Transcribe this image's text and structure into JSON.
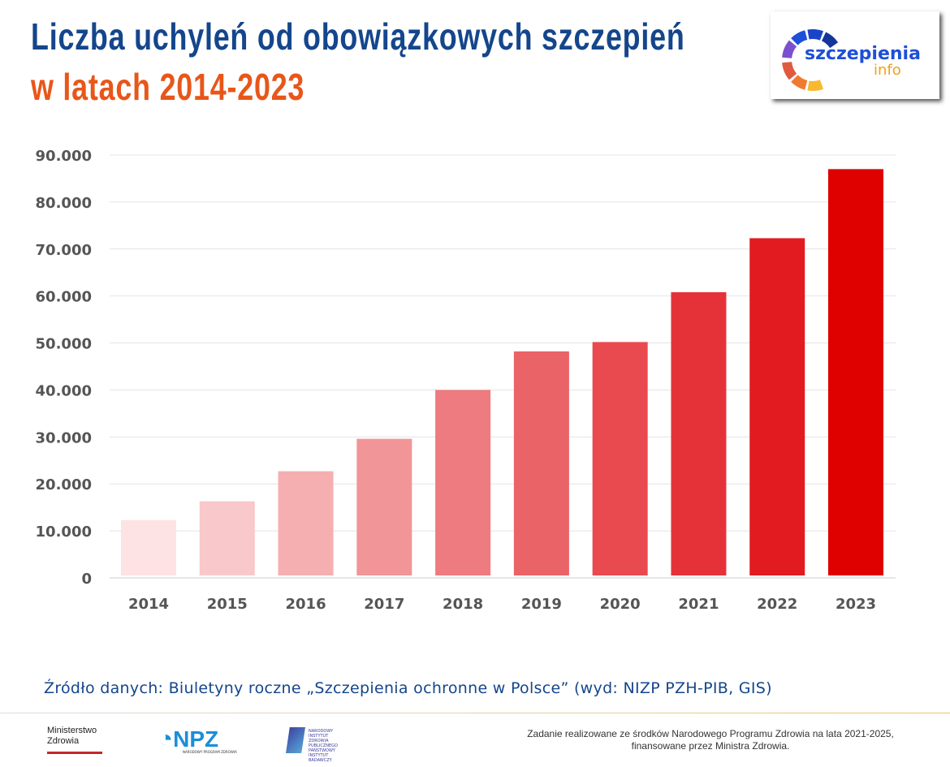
{
  "header": {
    "title_line1": "Liczba uchyleń od obowiązkowych szczepień",
    "title_line2": "w latach 2014-2023"
  },
  "logo": {
    "line1": "szczepienia",
    "line2": "info",
    "segment_colors": [
      "#7a4fd0",
      "#1e4fd8",
      "#1a44c8",
      "#14369a",
      "#e05a40",
      "#f07a30",
      "#f8b830"
    ]
  },
  "chart_data": {
    "type": "bar",
    "categories": [
      "2014",
      "2015",
      "2016",
      "2017",
      "2018",
      "2019",
      "2020",
      "2021",
      "2022",
      "2023"
    ],
    "values": [
      12300,
      16300,
      22700,
      29600,
      40000,
      48200,
      50200,
      60800,
      72300,
      87000
    ],
    "ylim": [
      0,
      90000
    ],
    "yticks": [
      0,
      10000,
      20000,
      30000,
      40000,
      50000,
      60000,
      70000,
      80000,
      90000
    ],
    "ytick_labels": [
      "0",
      "10.000",
      "20.000",
      "30.000",
      "40.000",
      "50.000",
      "60.000",
      "70.000",
      "80.000",
      "90.000"
    ],
    "grid": true,
    "bar_colors": [
      "#fde3e3",
      "#f9c8ca",
      "#f5afb1",
      "#f19598",
      "#ee7b7f",
      "#ea6367",
      "#e84a4f",
      "#e53238",
      "#e21b21",
      "#df0000"
    ]
  },
  "source": "Źródło danych: Biuletyny roczne „Szczepienia ochronne w Polsce” (wyd: NIZP PZH-PIB, GIS)",
  "footer": {
    "ministry_line1": "Ministerstwo",
    "ministry_line2": "Zdrowia",
    "npz": "NPZ",
    "npz_sub": "NARODOWY PROGRAM ZDROWIA",
    "nizp": "NARODOWY INSTYTUT ZDROWIA PUBLICZNEGO PAŃSTWOWY INSTYTUT BADAWCZY",
    "funding_line1": "Zadanie realizowane ze środków Narodowego Programu Zdrowia na lata 2021-2025,",
    "funding_line2": "finansowane przez Ministra Zdrowia."
  }
}
